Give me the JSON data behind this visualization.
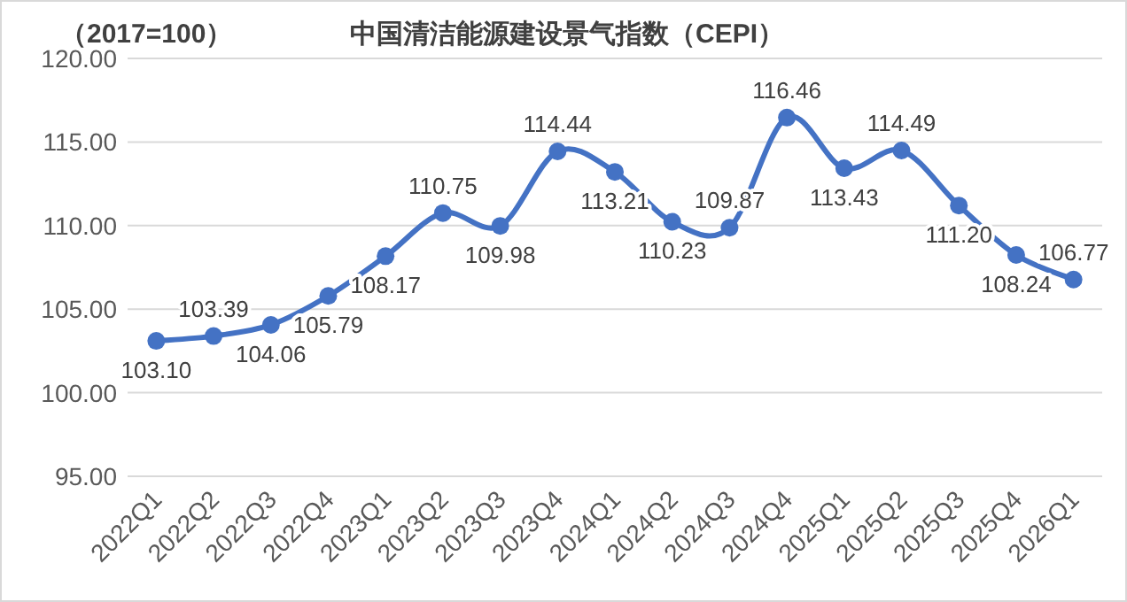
{
  "chart_data": {
    "type": "line",
    "title": "中国清洁能源建设景气指数（CEPI）",
    "subtitle": "（2017=100）",
    "categories": [
      "2022Q1",
      "2022Q2",
      "2022Q3",
      "2022Q4",
      "2023Q1",
      "2023Q2",
      "2023Q3",
      "2023Q4",
      "2024Q1",
      "2024Q2",
      "2024Q3",
      "2024Q4",
      "2025Q1",
      "2025Q2",
      "2025Q3",
      "2025Q4",
      "2026Q1"
    ],
    "series": [
      {
        "color": "#4472c4",
        "values": [
          103.1,
          103.39,
          104.06,
          105.79,
          108.17,
          110.75,
          109.98,
          114.44,
          113.21,
          110.23,
          109.87,
          116.46,
          113.43,
          114.49,
          111.2,
          108.24,
          106.77
        ],
        "value_labels": [
          "103.10",
          "103.39",
          "104.06",
          "105.79",
          "108.17",
          "110.75",
          "109.98",
          "114.44",
          "113.21",
          "110.23",
          "109.87",
          "116.46",
          "113.43",
          "114.49",
          "111.20",
          "108.24",
          "106.77"
        ]
      }
    ],
    "ylim": [
      95,
      120
    ],
    "yticks": [
      {
        "value": 95,
        "label": "95.00"
      },
      {
        "value": 100,
        "label": "100.00"
      },
      {
        "value": 105,
        "label": "105.00"
      },
      {
        "value": 110,
        "label": "110.00"
      },
      {
        "value": 115,
        "label": "115.00"
      },
      {
        "value": 120,
        "label": "120.00"
      }
    ],
    "grid": "y",
    "marker": "circle",
    "line_style": "solid"
  }
}
